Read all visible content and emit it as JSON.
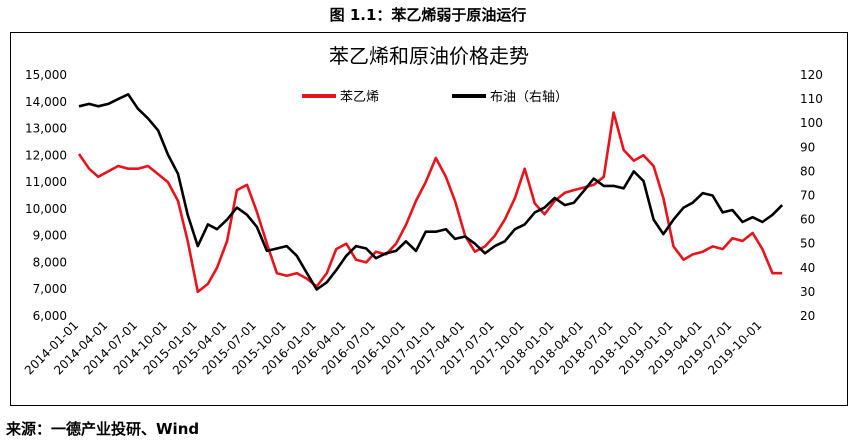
{
  "figure": {
    "caption": "图 1.1：苯乙烯弱于原油运行",
    "source": "来源：一德产业投研、Wind"
  },
  "colors": {
    "styrene": "#e8141b",
    "brent": "#000000",
    "frame": "#000000"
  },
  "chart_data": {
    "type": "line",
    "title": "苯乙烯和原油价格走势",
    "xlabel": "",
    "ylabel": "",
    "y2label": "",
    "x_tick_labels": [
      "2014-01-01",
      "2014-04-01",
      "2014-07-01",
      "2014-10-01",
      "2015-01-01",
      "2015-04-01",
      "2015-07-01",
      "2015-10-01",
      "2016-01-01",
      "2016-04-01",
      "2016-07-01",
      "2016-10-01",
      "2017-01-01",
      "2017-04-01",
      "2017-07-01",
      "2017-10-01",
      "2018-01-01",
      "2018-04-01",
      "2018-07-01",
      "2018-10-01",
      "2019-01-01",
      "2019-04-01",
      "2019-07-01",
      "2019-10-01"
    ],
    "xlim": [
      "2014-01-01",
      "2019-12-31"
    ],
    "ylim": [
      6000,
      15000
    ],
    "y_ticks": [
      "6,000",
      "7,000",
      "8,000",
      "9,000",
      "10,000",
      "11,000",
      "12,000",
      "13,000",
      "14,000",
      "15,000"
    ],
    "y2lim": [
      20,
      120
    ],
    "y2_ticks": [
      "20",
      "30",
      "40",
      "50",
      "60",
      "70",
      "80",
      "90",
      "100",
      "110",
      "120"
    ],
    "grid": false,
    "legend_position": "top-center",
    "series": [
      {
        "name": "苯乙烯",
        "axis": "left",
        "x": [
          "2014-01-01",
          "2014-02-01",
          "2014-03-01",
          "2014-04-01",
          "2014-05-01",
          "2014-06-01",
          "2014-07-01",
          "2014-08-01",
          "2014-09-01",
          "2014-10-01",
          "2014-11-01",
          "2014-12-01",
          "2015-01-01",
          "2015-02-01",
          "2015-03-01",
          "2015-04-01",
          "2015-05-01",
          "2015-06-01",
          "2015-07-01",
          "2015-08-01",
          "2015-09-01",
          "2015-10-01",
          "2015-11-01",
          "2015-12-01",
          "2016-01-01",
          "2016-02-01",
          "2016-03-01",
          "2016-04-01",
          "2016-05-01",
          "2016-06-01",
          "2016-07-01",
          "2016-08-01",
          "2016-09-01",
          "2016-10-01",
          "2016-11-01",
          "2016-12-01",
          "2017-01-01",
          "2017-02-01",
          "2017-03-01",
          "2017-04-01",
          "2017-05-01",
          "2017-06-01",
          "2017-07-01",
          "2017-08-01",
          "2017-09-01",
          "2017-10-01",
          "2017-11-01",
          "2017-12-01",
          "2018-01-01",
          "2018-02-01",
          "2018-03-01",
          "2018-04-01",
          "2018-05-01",
          "2018-06-01",
          "2018-07-01",
          "2018-08-01",
          "2018-09-01",
          "2018-10-01",
          "2018-11-01",
          "2018-12-01",
          "2019-01-01",
          "2019-02-01",
          "2019-03-01",
          "2019-04-01",
          "2019-05-01",
          "2019-06-01",
          "2019-07-01",
          "2019-08-01",
          "2019-09-01",
          "2019-10-01",
          "2019-11-01",
          "2019-12-01"
        ],
        "values": [
          12050,
          11500,
          11200,
          11400,
          11600,
          11500,
          11500,
          11600,
          11300,
          11000,
          10300,
          8800,
          6900,
          7200,
          7800,
          8800,
          10700,
          10900,
          9900,
          8700,
          7600,
          7500,
          7600,
          7400,
          7100,
          7600,
          8500,
          8700,
          8100,
          8000,
          8400,
          8300,
          8700,
          9400,
          10300,
          11000,
          11900,
          11200,
          10300,
          9000,
          8400,
          8600,
          9000,
          9600,
          10400,
          11500,
          10200,
          9800,
          10300,
          10600,
          10700,
          10800,
          10900,
          11200,
          13600,
          12200,
          11800,
          12000,
          11600,
          10400,
          8600,
          8100,
          8300,
          8400,
          8600,
          8500,
          8900,
          8800,
          9100,
          8500,
          7600,
          7600
        ]
      },
      {
        "name": "布油（右轴）",
        "axis": "right",
        "x": [
          "2014-01-01",
          "2014-02-01",
          "2014-03-01",
          "2014-04-01",
          "2014-05-01",
          "2014-06-01",
          "2014-07-01",
          "2014-08-01",
          "2014-09-01",
          "2014-10-01",
          "2014-11-01",
          "2014-12-01",
          "2015-01-01",
          "2015-02-01",
          "2015-03-01",
          "2015-04-01",
          "2015-05-01",
          "2015-06-01",
          "2015-07-01",
          "2015-08-01",
          "2015-09-01",
          "2015-10-01",
          "2015-11-01",
          "2015-12-01",
          "2016-01-01",
          "2016-02-01",
          "2016-03-01",
          "2016-04-01",
          "2016-05-01",
          "2016-06-01",
          "2016-07-01",
          "2016-08-01",
          "2016-09-01",
          "2016-10-01",
          "2016-11-01",
          "2016-12-01",
          "2017-01-01",
          "2017-02-01",
          "2017-03-01",
          "2017-04-01",
          "2017-05-01",
          "2017-06-01",
          "2017-07-01",
          "2017-08-01",
          "2017-09-01",
          "2017-10-01",
          "2017-11-01",
          "2017-12-01",
          "2018-01-01",
          "2018-02-01",
          "2018-03-01",
          "2018-04-01",
          "2018-05-01",
          "2018-06-01",
          "2018-07-01",
          "2018-08-01",
          "2018-09-01",
          "2018-10-01",
          "2018-11-01",
          "2018-12-01",
          "2019-01-01",
          "2019-02-01",
          "2019-03-01",
          "2019-04-01",
          "2019-05-01",
          "2019-06-01",
          "2019-07-01",
          "2019-08-01",
          "2019-09-01",
          "2019-10-01",
          "2019-11-01",
          "2019-12-01"
        ],
        "values": [
          107,
          108,
          107,
          108,
          110,
          112,
          106,
          102,
          97,
          87,
          79,
          62,
          49,
          58,
          56,
          60,
          65,
          62,
          57,
          47,
          48,
          49,
          45,
          38,
          31,
          34,
          39,
          45,
          49,
          48,
          44,
          46,
          47,
          51,
          47,
          55,
          55,
          56,
          52,
          53,
          50,
          46,
          49,
          51,
          56,
          58,
          63,
          65,
          69,
          66,
          67,
          72,
          77,
          74,
          74,
          73,
          80,
          76,
          60,
          54,
          60,
          65,
          67,
          71,
          70,
          63,
          64,
          59,
          61,
          59,
          62,
          66
        ]
      }
    ]
  }
}
